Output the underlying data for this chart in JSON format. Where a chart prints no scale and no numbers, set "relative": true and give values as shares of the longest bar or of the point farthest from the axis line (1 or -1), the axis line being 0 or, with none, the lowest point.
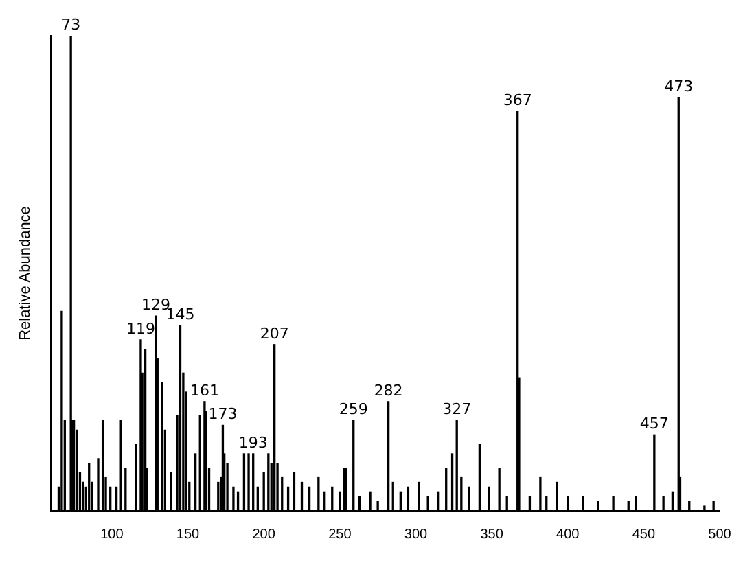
{
  "chart_data": {
    "type": "bar",
    "relative": true,
    "ylabel": "Relative Abundance",
    "color": "#000000",
    "xlim": [
      60,
      500
    ],
    "xticks": [
      100,
      150,
      200,
      250,
      300,
      350,
      400,
      450,
      500
    ],
    "grid": false,
    "legend": false,
    "x": [
      65,
      67,
      69,
      73,
      74,
      75,
      77,
      79,
      81,
      83,
      85,
      87,
      91,
      94,
      96,
      99,
      103,
      106,
      109,
      116,
      119,
      120,
      122,
      123,
      129,
      130,
      133,
      135,
      139,
      143,
      145,
      147,
      149,
      151,
      155,
      158,
      161,
      162,
      164,
      170,
      172,
      173,
      174,
      176,
      180,
      183,
      187,
      190,
      193,
      196,
      200,
      203,
      205,
      207,
      209,
      212,
      216,
      220,
      225,
      230,
      236,
      240,
      245,
      250,
      253,
      254,
      259,
      263,
      270,
      275,
      282,
      285,
      290,
      295,
      302,
      308,
      315,
      320,
      324,
      327,
      330,
      335,
      342,
      348,
      355,
      360,
      367,
      368,
      375,
      382,
      386,
      393,
      400,
      410,
      420,
      430,
      440,
      445,
      457,
      463,
      469,
      473,
      474,
      480,
      490,
      496
    ],
    "values": [
      0.05,
      0.42,
      0.19,
      1,
      0.19,
      0.19,
      0.17,
      0.08,
      0.06,
      0.05,
      0.1,
      0.06,
      0.11,
      0.19,
      0.07,
      0.05,
      0.05,
      0.19,
      0.09,
      0.14,
      0.36,
      0.29,
      0.34,
      0.09,
      0.41,
      0.32,
      0.27,
      0.17,
      0.08,
      0.2,
      0.39,
      0.29,
      0.25,
      0.06,
      0.12,
      0.2,
      0.23,
      0.21,
      0.09,
      0.06,
      0.07,
      0.18,
      0.12,
      0.1,
      0.05,
      0.04,
      0.12,
      0.12,
      0.12,
      0.05,
      0.08,
      0.12,
      0.1,
      0.35,
      0.1,
      0.07,
      0.05,
      0.08,
      0.06,
      0.05,
      0.07,
      0.04,
      0.05,
      0.04,
      0.09,
      0.09,
      0.19,
      0.03,
      0.04,
      0.02,
      0.23,
      0.06,
      0.04,
      0.05,
      0.06,
      0.03,
      0.04,
      0.09,
      0.12,
      0.19,
      0.07,
      0.05,
      0.14,
      0.05,
      0.09,
      0.03,
      0.84,
      0.28,
      0.03,
      0.07,
      0.03,
      0.06,
      0.03,
      0.03,
      0.02,
      0.03,
      0.02,
      0.03,
      0.16,
      0.03,
      0.04,
      0.87,
      0.07,
      0.02,
      0.01,
      0.02
    ],
    "annotations": [
      {
        "text": "73",
        "x": 73,
        "y": 1
      },
      {
        "text": "119",
        "x": 119,
        "y": 0.36
      },
      {
        "text": "129",
        "x": 129,
        "y": 0.41
      },
      {
        "text": "145",
        "x": 145,
        "y": 0.39
      },
      {
        "text": "161",
        "x": 161,
        "y": 0.23
      },
      {
        "text": "173",
        "x": 173,
        "y": 0.18
      },
      {
        "text": "193",
        "x": 193,
        "y": 0.12
      },
      {
        "text": "207",
        "x": 207,
        "y": 0.35
      },
      {
        "text": "259",
        "x": 259,
        "y": 0.19
      },
      {
        "text": "282",
        "x": 282,
        "y": 0.23
      },
      {
        "text": "327",
        "x": 327,
        "y": 0.19
      },
      {
        "text": "367",
        "x": 367,
        "y": 0.84
      },
      {
        "text": "457",
        "x": 457,
        "y": 0.16
      },
      {
        "text": "473",
        "x": 473,
        "y": 0.87
      }
    ]
  }
}
